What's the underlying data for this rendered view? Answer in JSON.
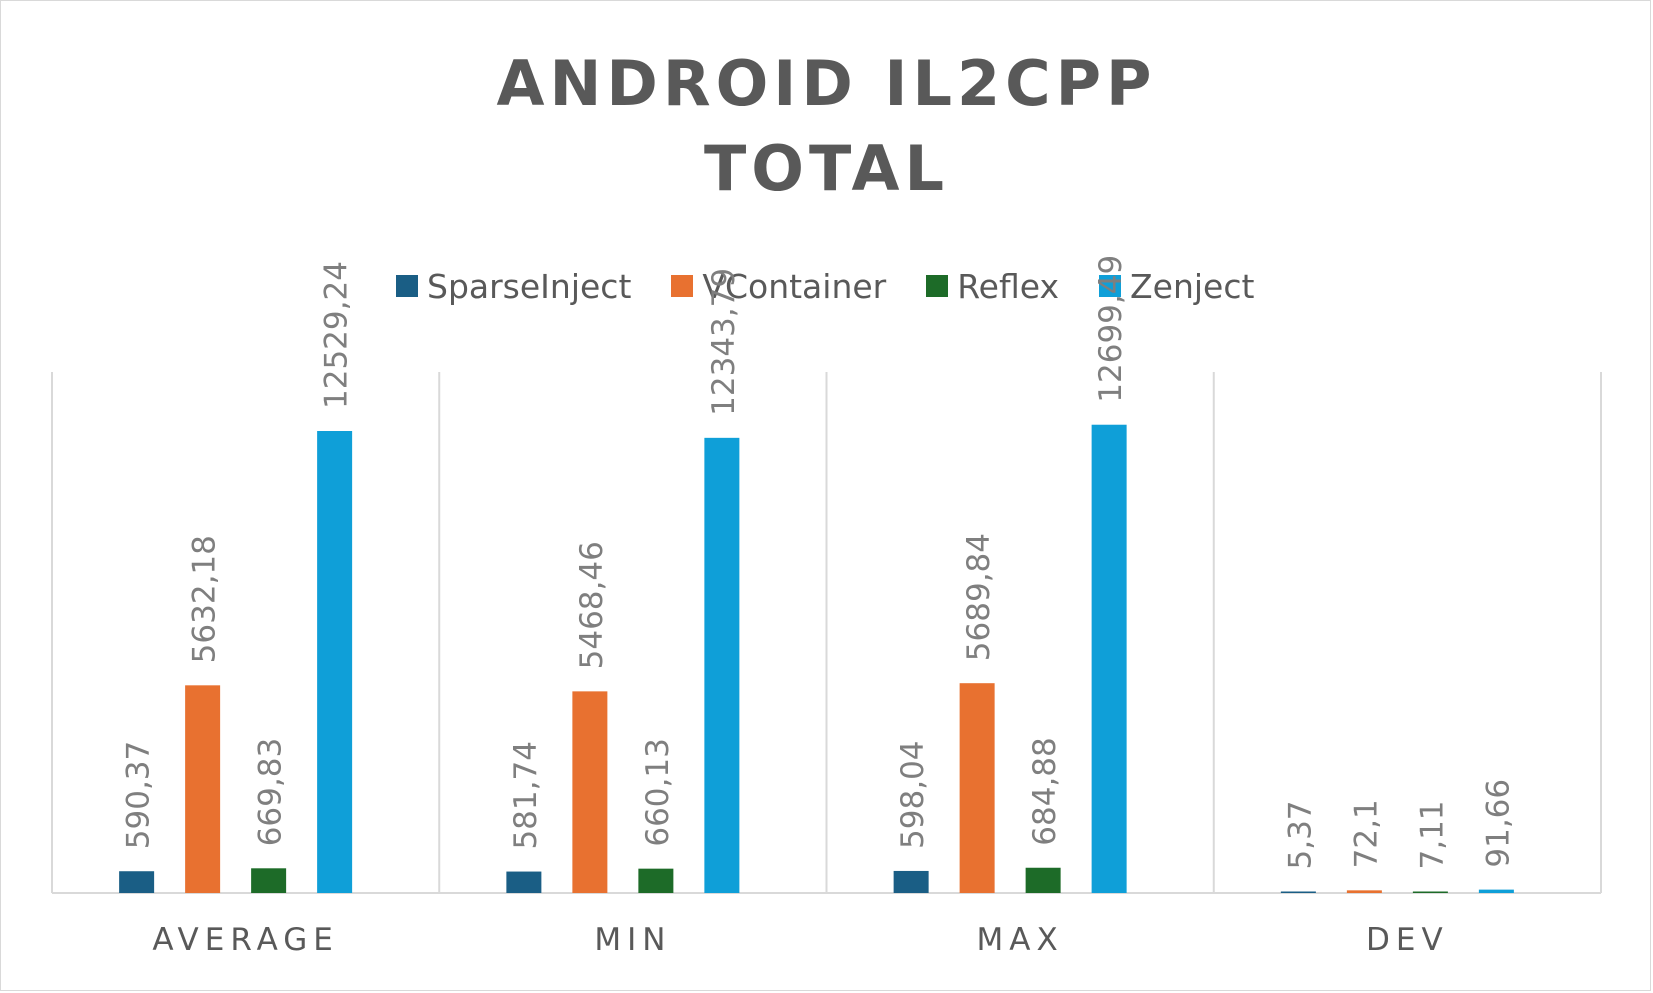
{
  "chart_data": {
    "type": "bar",
    "title_lines": [
      "ANDROID IL2CPP",
      "TOTAL"
    ],
    "categories": [
      "AVERAGE",
      "MIN",
      "MAX",
      "DEV"
    ],
    "series": [
      {
        "name": "SparseInject",
        "color": "#1a5e85",
        "values": [
          590.37,
          581.74,
          598.04,
          5.37
        ],
        "labels": [
          "590,37",
          "581,74",
          "598,04",
          "5,37"
        ]
      },
      {
        "name": "VContainer",
        "color": "#e87130",
        "values": [
          5632.18,
          5468.46,
          5689.84,
          72.1
        ],
        "labels": [
          "5632,18",
          "5468,46",
          "5689,84",
          "72,1"
        ]
      },
      {
        "name": "Reflex",
        "color": "#1d6b28",
        "values": [
          669.83,
          660.13,
          684.88,
          7.11
        ],
        "labels": [
          "669,83",
          "660,13",
          "684,88",
          "7,11"
        ]
      },
      {
        "name": "Zenject",
        "color": "#0f9fd8",
        "values": [
          12529.24,
          12343.79,
          12699.49,
          91.66
        ],
        "labels": [
          "12529,24",
          "12343,79",
          "12699,49",
          "91,66"
        ]
      }
    ],
    "ylim": [
      0,
      14000
    ],
    "legend_position": "top",
    "grid": "vertical category separators"
  }
}
